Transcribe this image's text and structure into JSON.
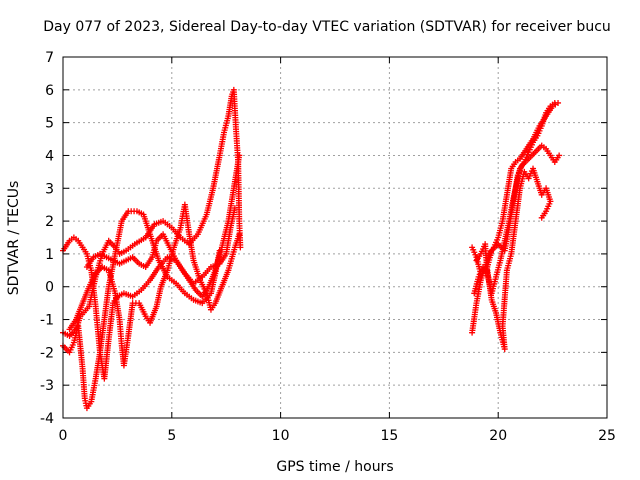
{
  "chart_data": {
    "type": "scatter",
    "title": "Day 077 of 2023, Sidereal Day-to-day VTEC variation (SDTVAR) for receiver bucu",
    "xlabel": "GPS time / hours",
    "ylabel": "SDTVAR / TECUs",
    "xlim": [
      0,
      25
    ],
    "ylim": [
      -4,
      7
    ],
    "xticks": [
      0,
      5,
      10,
      15,
      20,
      25
    ],
    "yticks": [
      -4,
      -3,
      -2,
      -1,
      0,
      1,
      2,
      3,
      4,
      5,
      6,
      7
    ],
    "grid": true,
    "marker": "+",
    "color": "#ff0000",
    "series": [
      {
        "values": [
          [
            0.0,
            -1.4
          ],
          [
            0.3,
            -1.5
          ],
          [
            0.6,
            -1.3
          ],
          [
            0.8,
            -0.9
          ],
          [
            1.2,
            -0.6
          ],
          [
            1.5,
            0.3
          ],
          [
            1.8,
            1.0
          ],
          [
            2.1,
            1.4
          ],
          [
            2.4,
            1.2
          ],
          [
            2.6,
            1.0
          ],
          [
            2.9,
            1.1
          ],
          [
            3.3,
            1.3
          ],
          [
            3.8,
            1.5
          ],
          [
            4.2,
            1.9
          ],
          [
            4.6,
            2.0
          ],
          [
            5.0,
            1.8
          ],
          [
            5.4,
            1.5
          ],
          [
            5.8,
            1.3
          ],
          [
            6.2,
            1.6
          ],
          [
            6.6,
            2.2
          ],
          [
            6.9,
            3.0
          ],
          [
            7.2,
            4.0
          ],
          [
            7.4,
            4.7
          ],
          [
            7.6,
            5.2
          ],
          [
            7.75,
            5.8
          ],
          [
            7.85,
            6.0
          ],
          [
            7.95,
            4.8
          ],
          [
            8.05,
            3.8
          ],
          [
            8.1,
            2.0
          ],
          [
            8.15,
            1.2
          ]
        ]
      },
      {
        "values": [
          [
            0.0,
            1.1
          ],
          [
            0.3,
            1.4
          ],
          [
            0.5,
            1.5
          ],
          [
            0.7,
            1.4
          ],
          [
            0.9,
            1.2
          ],
          [
            1.1,
            1.0
          ],
          [
            1.3,
            0.5
          ],
          [
            1.5,
            -0.6
          ],
          [
            1.7,
            -2.0
          ],
          [
            1.9,
            -2.8
          ],
          [
            2.1,
            -1.6
          ],
          [
            2.3,
            -0.5
          ],
          [
            2.5,
            -0.3
          ],
          [
            2.8,
            -0.2
          ],
          [
            3.2,
            -0.3
          ],
          [
            3.6,
            -0.1
          ],
          [
            4.0,
            0.2
          ],
          [
            4.4,
            0.6
          ],
          [
            4.8,
            0.9
          ],
          [
            5.2,
            0.8
          ],
          [
            5.6,
            0.4
          ],
          [
            6.0,
            0.1
          ],
          [
            6.4,
            0.3
          ],
          [
            6.8,
            0.6
          ],
          [
            7.2,
            0.7
          ],
          [
            7.5,
            1.0
          ],
          [
            7.7,
            1.8
          ],
          [
            7.9,
            2.4
          ]
        ]
      },
      {
        "values": [
          [
            0.0,
            -1.8
          ],
          [
            0.3,
            -2.0
          ],
          [
            0.5,
            -1.7
          ],
          [
            0.7,
            -1.2
          ],
          [
            0.9,
            -2.5
          ],
          [
            1.0,
            -3.4
          ],
          [
            1.1,
            -3.7
          ],
          [
            1.3,
            -3.5
          ],
          [
            1.5,
            -2.8
          ],
          [
            1.7,
            -2.0
          ],
          [
            1.9,
            -1.0
          ],
          [
            2.1,
            0.0
          ],
          [
            2.4,
            1.0
          ],
          [
            2.7,
            2.0
          ],
          [
            3.0,
            2.3
          ],
          [
            3.4,
            2.3
          ],
          [
            3.7,
            2.2
          ],
          [
            4.0,
            1.6
          ],
          [
            4.4,
            0.8
          ],
          [
            4.8,
            0.3
          ],
          [
            5.2,
            0.1
          ],
          [
            5.6,
            -0.2
          ],
          [
            6.0,
            -0.4
          ],
          [
            6.4,
            -0.5
          ],
          [
            6.8,
            -0.2
          ],
          [
            7.0,
            0.4
          ],
          [
            7.2,
            1.1
          ]
        ]
      },
      {
        "values": [
          [
            0.3,
            -1.3
          ],
          [
            0.6,
            -1.0
          ],
          [
            0.9,
            -0.5
          ],
          [
            1.2,
            0.0
          ],
          [
            1.5,
            0.4
          ],
          [
            1.8,
            0.6
          ],
          [
            2.1,
            0.5
          ],
          [
            2.4,
            -0.2
          ],
          [
            2.6,
            -1.0
          ],
          [
            2.7,
            -1.8
          ],
          [
            2.8,
            -2.4
          ],
          [
            3.0,
            -1.5
          ],
          [
            3.2,
            -0.5
          ],
          [
            3.5,
            -0.5
          ],
          [
            3.8,
            -0.9
          ],
          [
            4.0,
            -1.1
          ],
          [
            4.3,
            -0.6
          ],
          [
            4.5,
            0.0
          ],
          [
            4.8,
            0.5
          ],
          [
            5.1,
            1.2
          ],
          [
            5.4,
            1.8
          ],
          [
            5.6,
            2.5
          ],
          [
            5.8,
            1.6
          ],
          [
            6.0,
            0.8
          ],
          [
            6.3,
            0.2
          ],
          [
            6.6,
            -0.2
          ],
          [
            6.8,
            -0.7
          ],
          [
            7.0,
            -0.5
          ],
          [
            7.3,
            0.0
          ],
          [
            7.6,
            0.5
          ],
          [
            7.9,
            1.2
          ],
          [
            8.1,
            1.6
          ]
        ]
      },
      {
        "values": [
          [
            1.1,
            0.6
          ],
          [
            1.4,
            0.9
          ],
          [
            1.7,
            1.0
          ],
          [
            2.0,
            0.9
          ],
          [
            2.3,
            0.8
          ],
          [
            2.6,
            0.7
          ],
          [
            2.9,
            0.8
          ],
          [
            3.2,
            0.9
          ],
          [
            3.5,
            0.7
          ],
          [
            3.8,
            0.6
          ],
          [
            4.1,
            0.9
          ],
          [
            4.3,
            1.4
          ],
          [
            4.6,
            1.6
          ],
          [
            4.9,
            1.2
          ],
          [
            5.2,
            0.8
          ],
          [
            5.5,
            0.5
          ],
          [
            5.8,
            0.2
          ],
          [
            6.1,
            -0.1
          ],
          [
            6.4,
            -0.3
          ],
          [
            6.7,
            0.0
          ],
          [
            7.0,
            0.5
          ],
          [
            7.3,
            1.2
          ],
          [
            7.6,
            2.0
          ],
          [
            7.8,
            2.8
          ],
          [
            8.0,
            3.6
          ],
          [
            8.1,
            4.0
          ]
        ]
      },
      {
        "values": [
          [
            18.8,
            -1.4
          ],
          [
            19.0,
            -0.5
          ],
          [
            19.2,
            0.2
          ],
          [
            19.4,
            0.6
          ],
          [
            19.6,
            1.0
          ],
          [
            19.8,
            1.2
          ],
          [
            20.0,
            1.5
          ],
          [
            20.2,
            2.0
          ],
          [
            20.4,
            2.8
          ],
          [
            20.6,
            3.6
          ],
          [
            20.8,
            3.8
          ],
          [
            21.0,
            3.9
          ],
          [
            21.3,
            4.2
          ],
          [
            21.6,
            4.5
          ],
          [
            21.9,
            4.9
          ],
          [
            22.2,
            5.2
          ],
          [
            22.5,
            5.5
          ],
          [
            22.75,
            5.6
          ]
        ]
      },
      {
        "values": [
          [
            18.8,
            1.2
          ],
          [
            19.0,
            0.9
          ],
          [
            19.2,
            0.4
          ],
          [
            19.5,
            0.6
          ],
          [
            19.7,
            1.1
          ],
          [
            20.0,
            1.3
          ],
          [
            20.3,
            1.1
          ],
          [
            20.5,
            1.8
          ],
          [
            20.7,
            2.6
          ],
          [
            20.9,
            3.4
          ],
          [
            21.1,
            3.7
          ],
          [
            21.4,
            3.9
          ],
          [
            21.7,
            4.1
          ],
          [
            22.0,
            4.3
          ],
          [
            22.2,
            4.2
          ],
          [
            22.4,
            4.0
          ],
          [
            22.6,
            3.8
          ],
          [
            22.8,
            4.0
          ]
        ]
      },
      {
        "values": [
          [
            18.9,
            -0.2
          ],
          [
            19.1,
            0.3
          ],
          [
            19.3,
            0.6
          ],
          [
            19.5,
            0.5
          ],
          [
            19.7,
            -0.4
          ],
          [
            19.9,
            -0.8
          ],
          [
            20.1,
            -1.4
          ],
          [
            20.3,
            -1.9
          ],
          [
            20.2,
            -1.2
          ],
          [
            20.4,
            0.5
          ],
          [
            20.6,
            1.0
          ],
          [
            20.8,
            2.0
          ],
          [
            21.0,
            3.0
          ],
          [
            21.2,
            3.5
          ],
          [
            21.4,
            3.3
          ],
          [
            21.6,
            3.6
          ],
          [
            21.8,
            3.2
          ],
          [
            22.0,
            2.8
          ],
          [
            22.2,
            3.0
          ],
          [
            22.4,
            2.6
          ],
          [
            22.2,
            2.3
          ],
          [
            22.0,
            2.1
          ]
        ]
      },
      {
        "values": [
          [
            19.0,
            0.8
          ],
          [
            19.2,
            1.0
          ],
          [
            19.4,
            1.3
          ],
          [
            19.5,
            0.4
          ],
          [
            19.7,
            -0.2
          ],
          [
            19.9,
            0.3
          ],
          [
            20.1,
            0.8
          ],
          [
            20.3,
            1.4
          ],
          [
            20.5,
            2.0
          ],
          [
            20.7,
            2.7
          ],
          [
            20.9,
            3.3
          ],
          [
            21.0,
            3.6
          ],
          [
            21.2,
            3.8
          ],
          [
            21.4,
            4.1
          ],
          [
            21.6,
            4.4
          ],
          [
            21.8,
            4.6
          ],
          [
            22.0,
            4.9
          ],
          [
            22.2,
            5.3
          ],
          [
            22.4,
            5.5
          ],
          [
            22.6,
            5.6
          ]
        ]
      }
    ]
  }
}
